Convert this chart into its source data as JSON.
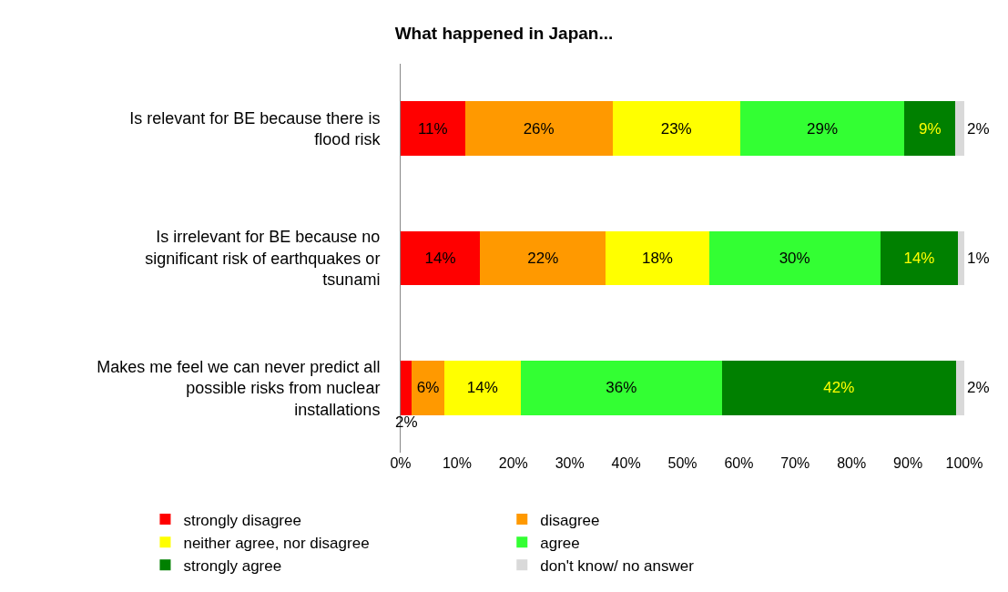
{
  "chart_data": {
    "type": "bar",
    "orientation": "horizontal",
    "stacked": true,
    "title": "What happened in Japan...",
    "categories": [
      "Is relevant for BE because there is flood risk",
      "Is irrelevant for BE because no significant risk of earthquakes or tsunami",
      "Makes me feel we can never predict all possible risks from nuclear installations"
    ],
    "series": [
      {
        "name": "strongly disagree",
        "color": "#ff0000",
        "values": [
          11.4,
          14.1,
          2.0
        ],
        "value_labels": [
          "11%",
          "14%",
          "2%"
        ]
      },
      {
        "name": "disagree",
        "color": "#ff9900",
        "values": [
          26.2,
          22.3,
          5.7
        ],
        "value_labels": [
          "26%",
          "22%",
          "6%"
        ]
      },
      {
        "name": "neither agree, nor disagree",
        "color": "#ffff00",
        "values": [
          22.6,
          18.3,
          13.6
        ],
        "value_labels": [
          "23%",
          "18%",
          "14%"
        ]
      },
      {
        "name": "agree",
        "color": "#33ff33",
        "values": [
          29.2,
          30.4,
          35.7
        ],
        "value_labels": [
          "29%",
          "30%",
          "36%"
        ]
      },
      {
        "name": "strongly agree",
        "color": "#008000",
        "values": [
          9.0,
          13.8,
          41.5
        ],
        "value_labels": [
          "9%",
          "14%",
          "42%"
        ]
      },
      {
        "name": "don't know/ no answer",
        "color": "#d9d9d9",
        "values": [
          1.6,
          1.1,
          1.5
        ],
        "value_labels": [
          "2%",
          "1%",
          "2%"
        ]
      }
    ],
    "xlim": [
      0,
      100
    ],
    "xticks": [
      {
        "value": 0,
        "label": "0%"
      },
      {
        "value": 10,
        "label": "10%"
      },
      {
        "value": 20,
        "label": "20%"
      },
      {
        "value": 30,
        "label": "30%"
      },
      {
        "value": 40,
        "label": "40%"
      },
      {
        "value": 50,
        "label": "50%"
      },
      {
        "value": 60,
        "label": "60%"
      },
      {
        "value": 70,
        "label": "70%"
      },
      {
        "value": 80,
        "label": "80%"
      },
      {
        "value": 90,
        "label": "90%"
      },
      {
        "value": 100,
        "label": "100%"
      }
    ],
    "grid": false,
    "legend": "bottom"
  }
}
